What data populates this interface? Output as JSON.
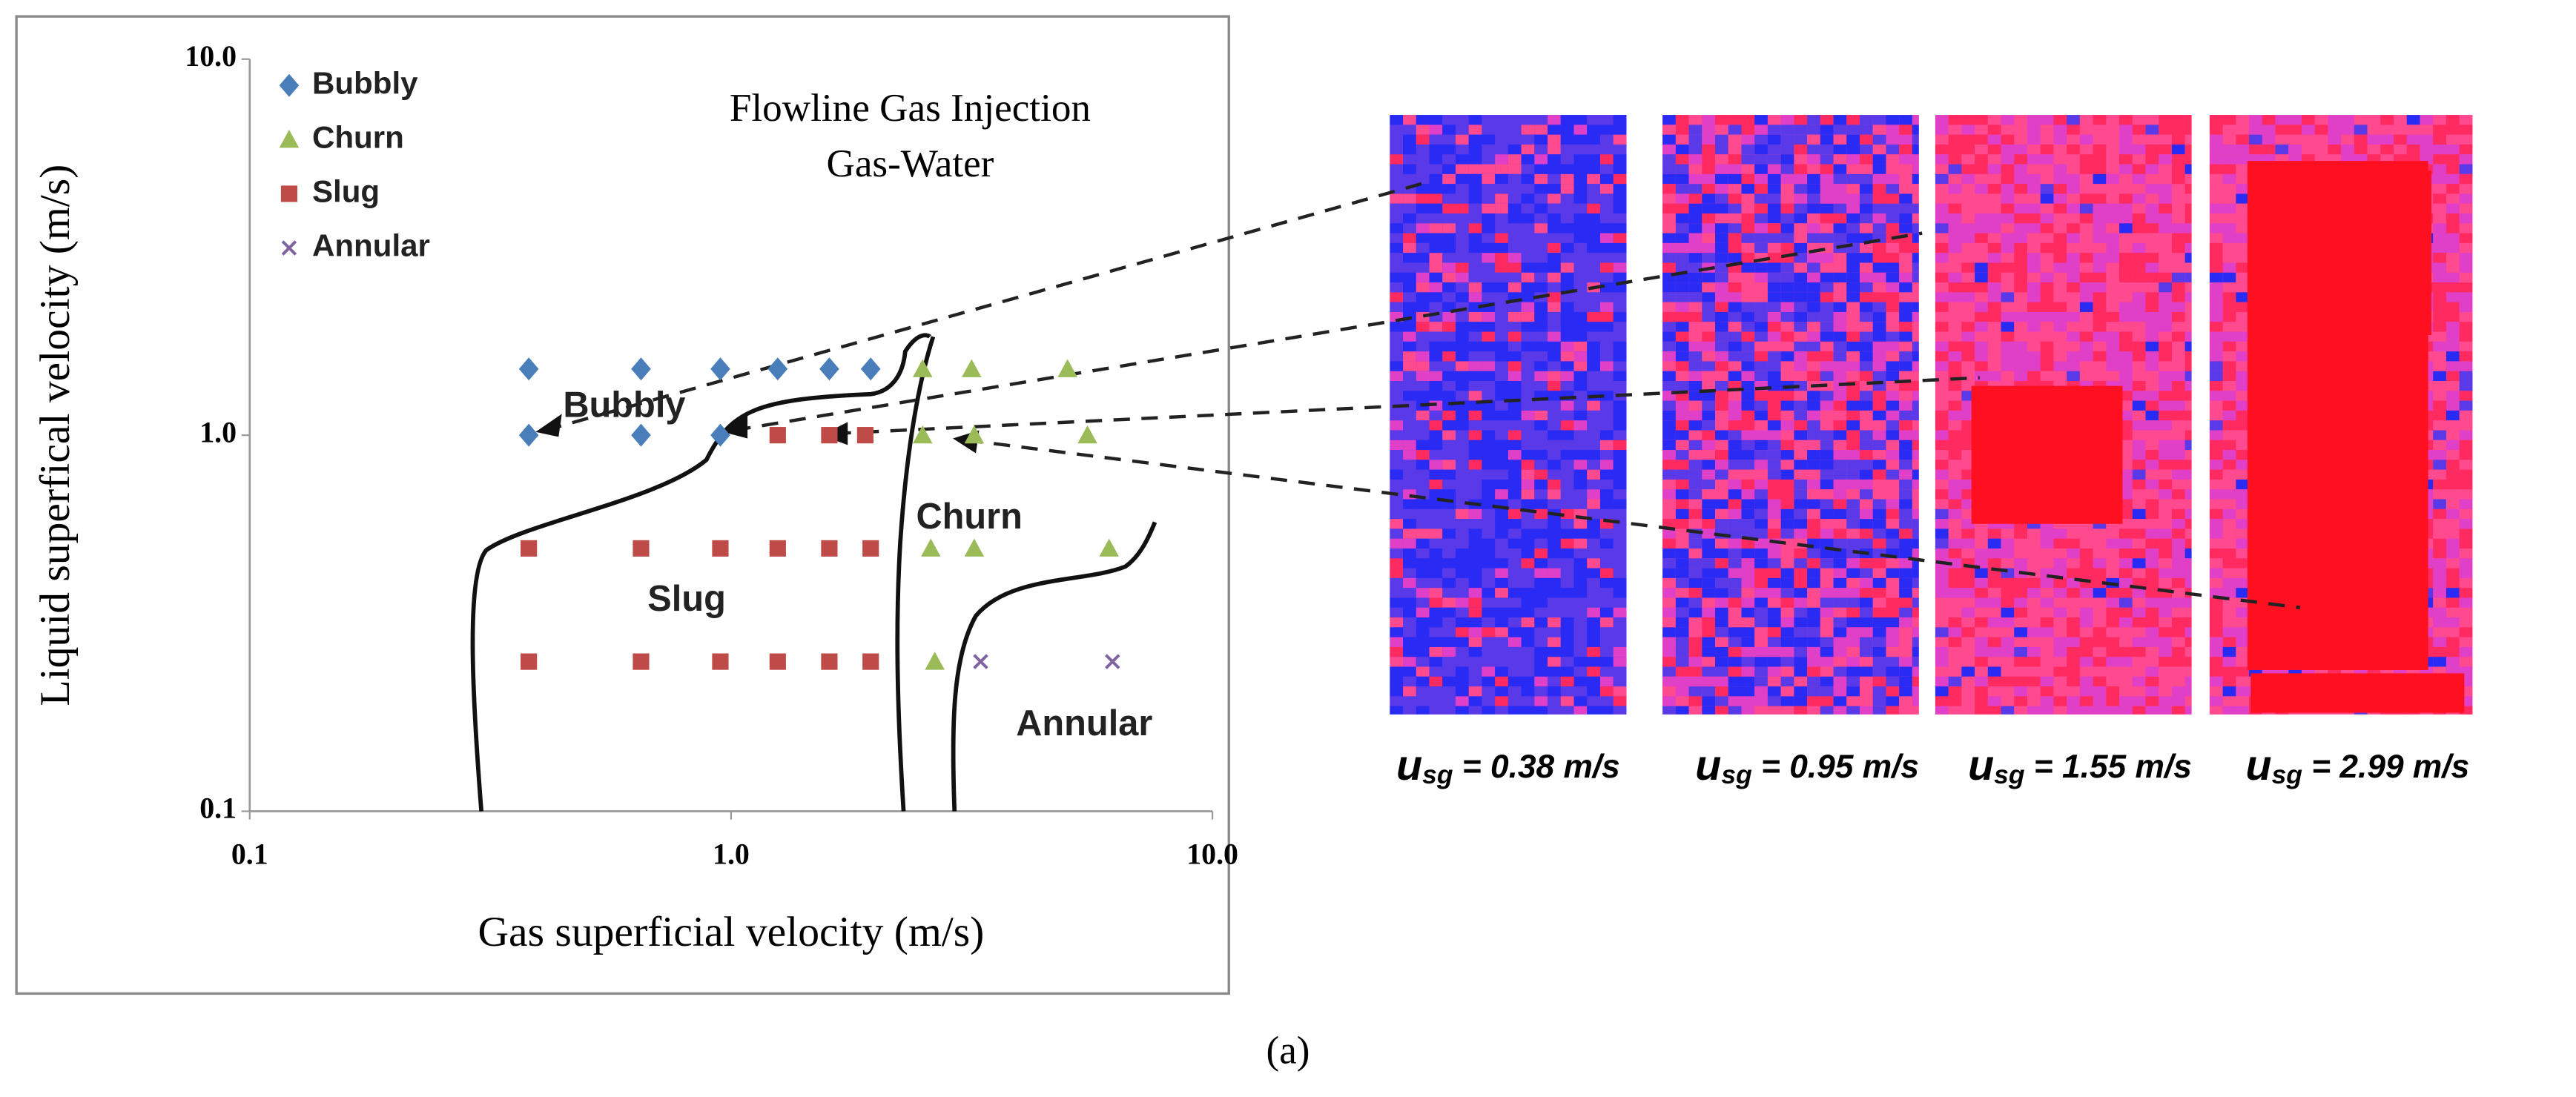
{
  "chart_data": {
    "type": "scatter",
    "title": "Flowline Gas Injection",
    "subtitle": "Gas-Water",
    "xlabel": "Gas superficial velocity (m/s)",
    "ylabel": "Liquid superfical velocity (m/s)",
    "xscale": "log",
    "yscale": "log",
    "xlim": [
      0.1,
      10
    ],
    "ylim": [
      0.1,
      10
    ],
    "xticks": [
      0.1,
      {
        "value": 1,
        "label": "1.0"
      },
      {
        "value": 10,
        "label": "10.0"
      }
    ],
    "yticks": [
      0.1,
      {
        "value": 1,
        "label": "1.0"
      },
      {
        "value": 10,
        "label": "10.0"
      }
    ],
    "legend": "upper left",
    "series": [
      {
        "name": "Bubbly",
        "color": "#4a7ebb",
        "marker": "diamond",
        "x": [
          0.38,
          0.65,
          0.95,
          1.25,
          1.6,
          1.95,
          0.38,
          0.65,
          0.95
        ],
        "values": [
          1.5,
          1.5,
          1.5,
          1.5,
          1.5,
          1.5,
          1.0,
          1.0,
          1.0
        ]
      },
      {
        "name": "Churn",
        "color": "#9bbb59",
        "marker": "triangle",
        "x": [
          2.5,
          3.16,
          5.0,
          2.5,
          3.2,
          5.5,
          2.6,
          3.2,
          6.1,
          2.65
        ],
        "values": [
          1.5,
          1.5,
          1.5,
          1.0,
          1.0,
          1.0,
          0.5,
          0.5,
          0.5,
          0.25
        ]
      },
      {
        "name": "Slug",
        "color": "#be4b48",
        "marker": "square",
        "x": [
          1.25,
          1.6,
          1.9,
          0.38,
          0.65,
          0.95,
          1.25,
          1.6,
          1.95,
          0.38,
          0.65,
          0.95,
          1.25,
          1.6,
          1.95
        ],
        "values": [
          1.0,
          1.0,
          1.0,
          0.5,
          0.5,
          0.5,
          0.5,
          0.5,
          0.5,
          0.25,
          0.25,
          0.25,
          0.25,
          0.25,
          0.25
        ]
      },
      {
        "name": "Annular",
        "color": "#8064a2",
        "marker": "x",
        "x": [
          3.3,
          6.2
        ],
        "values": [
          0.25,
          0.25
        ]
      }
    ],
    "annotations": [
      "Bubbly",
      "Slug",
      "Churn",
      "Annular"
    ]
  },
  "images": [
    {
      "symbol": "u",
      "subscript": "sg",
      "caption": " = 0.38 m/s"
    },
    {
      "symbol": "u",
      "subscript": "sg",
      "caption": " = 0.95 m/s"
    },
    {
      "symbol": "u",
      "subscript": "sg",
      "caption": " = 1.55 m/s"
    },
    {
      "symbol": "u",
      "subscript": "sg",
      "caption": " = 2.99 m/s"
    }
  ],
  "figure_label": "(a)"
}
